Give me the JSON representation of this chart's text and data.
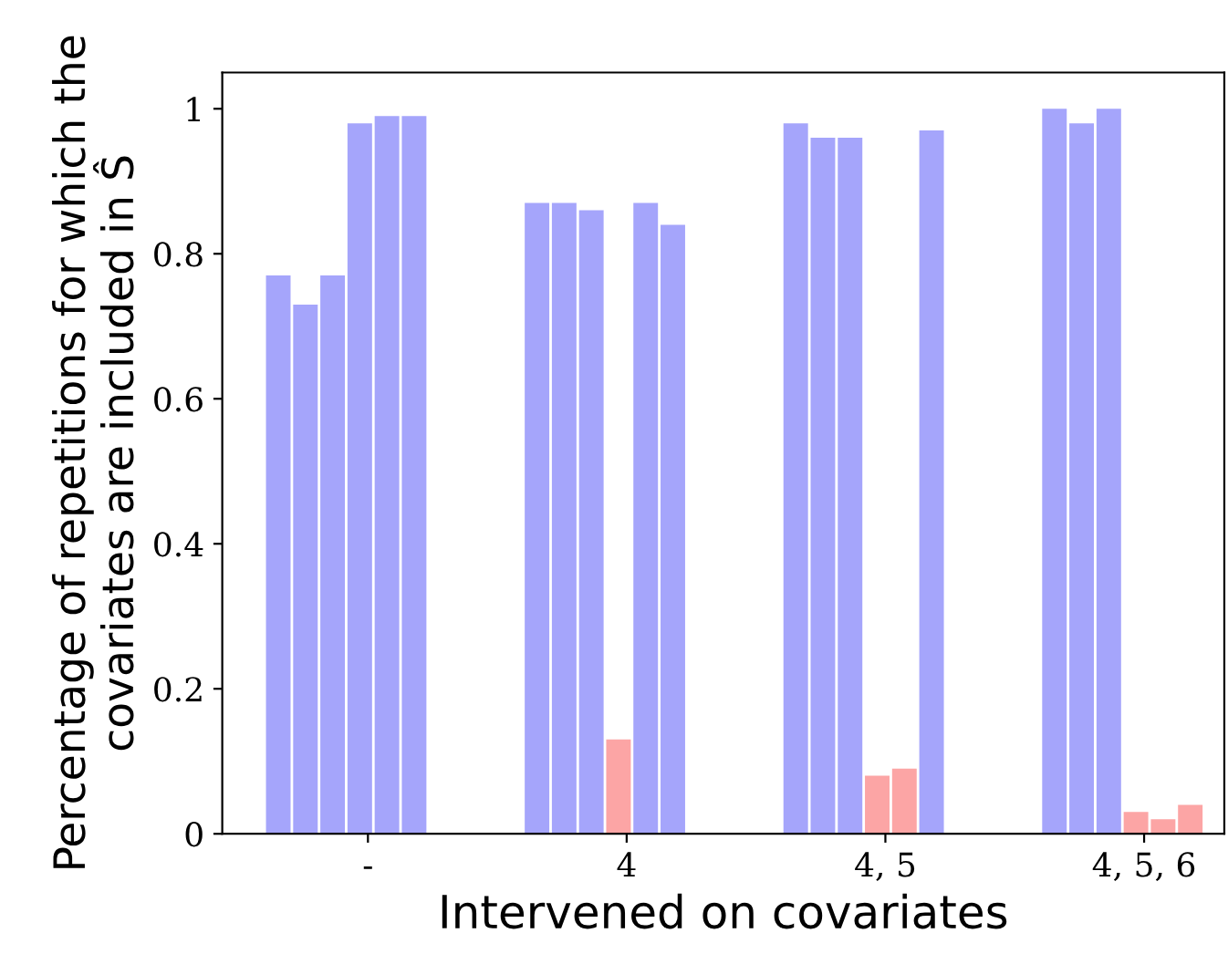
{
  "chart_data": {
    "type": "bar",
    "xlabel": "Intervened on covariates",
    "ylabel": "Percentage of repetitions for which the\ncovariates are included in Ŝ",
    "categories": [
      "-",
      "4",
      "4, 5",
      "4, 5, 6"
    ],
    "series": [
      {
        "values": [
          0.77,
          0.87,
          0.98,
          1.0
        ],
        "colors": [
          "#a5a5fb",
          "#a5a5fb",
          "#a5a5fb",
          "#a5a5fb"
        ]
      },
      {
        "values": [
          0.73,
          0.87,
          0.96,
          0.98
        ],
        "colors": [
          "#a5a5fb",
          "#a5a5fb",
          "#a5a5fb",
          "#a5a5fb"
        ]
      },
      {
        "values": [
          0.77,
          0.86,
          0.96,
          1.0
        ],
        "colors": [
          "#a5a5fb",
          "#a5a5fb",
          "#a5a5fb",
          "#a5a5fb"
        ]
      },
      {
        "values": [
          0.98,
          0.13,
          0.08,
          0.03
        ],
        "colors": [
          "#a5a5fb",
          "#fca5a5",
          "#fca5a5",
          "#fca5a5"
        ]
      },
      {
        "values": [
          0.99,
          0.87,
          0.09,
          0.02
        ],
        "colors": [
          "#a5a5fb",
          "#a5a5fb",
          "#fca5a5",
          "#fca5a5"
        ]
      },
      {
        "values": [
          0.99,
          0.84,
          0.97,
          0.04
        ],
        "colors": [
          "#a5a5fb",
          "#a5a5fb",
          "#a5a5fb",
          "#fca5a5"
        ]
      }
    ],
    "ylim": [
      0,
      1.05
    ],
    "yticks": [
      0,
      0.2,
      0.4,
      0.6,
      0.8,
      1
    ],
    "grid": false,
    "legend": false
  }
}
